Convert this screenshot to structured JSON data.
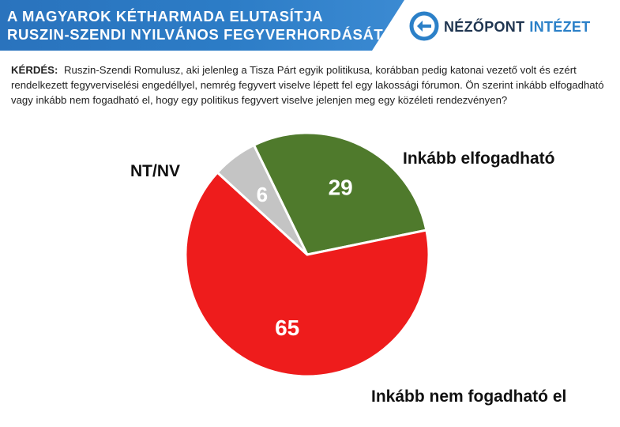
{
  "header": {
    "title_line1": "A MAGYAROK KÉTHARMADA ELUTASÍTJA",
    "title_line2": "RUSZIN-SZENDI NYILVÁNOS FEGYVERHORDÁSÁT",
    "logo_word1": "NÉZŐPONT",
    "logo_word2": "INTÉZET",
    "logo_icon": "nezopont-logo-icon"
  },
  "question": {
    "label": "KÉRDÉS:",
    "text": "Ruszin-Szendi Romulusz, aki jelenleg a Tisza Párt egyik politikusa, korábban pedig katonai vezető volt és ezért rendelkezett fegyverviselési engedéllyel, nemrég fegyvert viselve lépett fel egy lakossági fórumon. Ön szerint inkább elfogadható vagy inkább nem fogadható el, hogy egy politikus fegyvert viselve jelenjen meg egy közéleti rendezvényen?"
  },
  "colors": {
    "header_blue": "#2c7cc6",
    "accept": "#4f7a2c",
    "reject": "#ee1c1c",
    "no_answer": "#c4c4c4"
  },
  "chart_data": {
    "type": "pie",
    "start_angle_deg": -26,
    "slices": [
      {
        "label": "Inkább elfogadható",
        "value": 29,
        "color": "#4f7a2c"
      },
      {
        "label": "Inkább nem fogadható el",
        "value": 65,
        "color": "#ee1c1c"
      },
      {
        "label": "NT/NV",
        "value": 6,
        "color": "#c4c4c4"
      }
    ],
    "title": "",
    "legend": "none"
  }
}
